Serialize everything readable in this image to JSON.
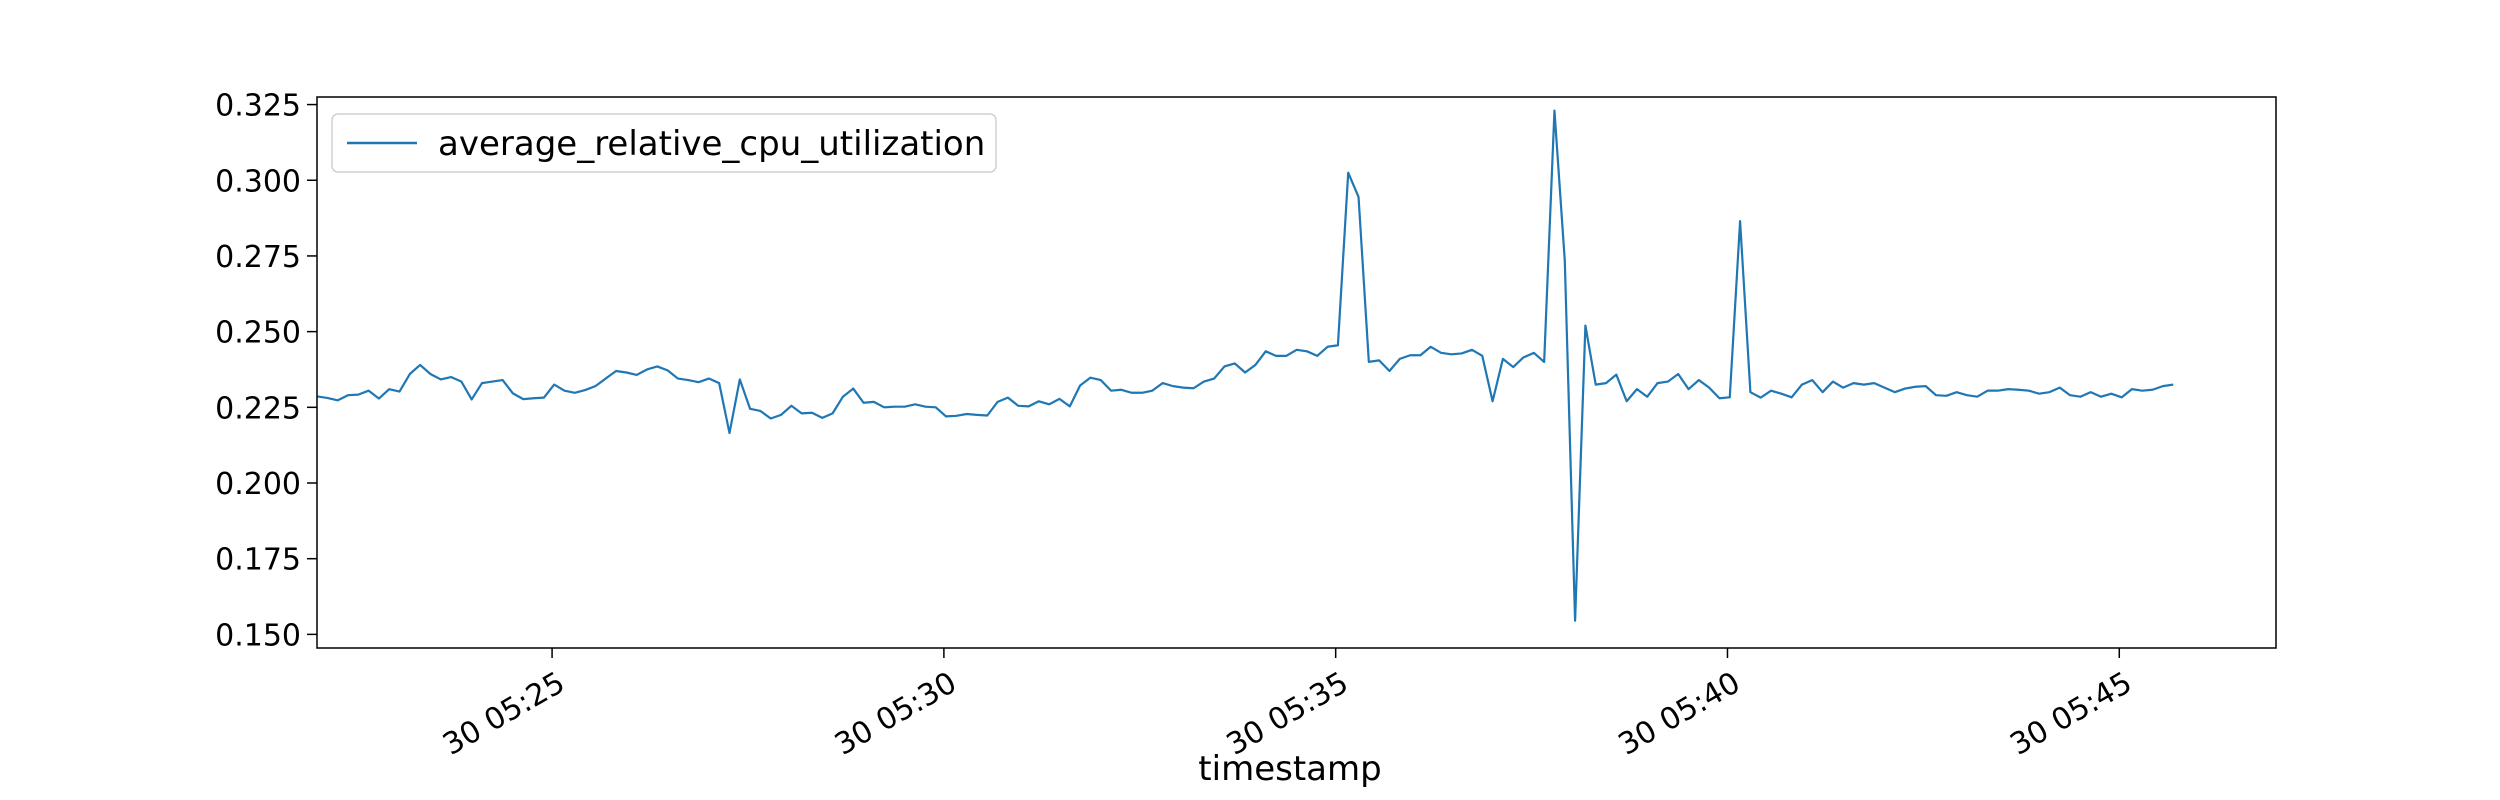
{
  "chart_data": {
    "type": "line",
    "title": "",
    "xlabel": "timestamp",
    "ylabel": "",
    "legend": {
      "placement": "top-left"
    },
    "grid": false,
    "series_color": "#1f77b4",
    "x_unit": "minutes",
    "xlim": [
      22.0,
      47.0
    ],
    "ylim": [
      0.1455,
      0.3275
    ],
    "x_ticks": [
      {
        "value": 25,
        "label": "30 05:25"
      },
      {
        "value": 30,
        "label": "30 05:30"
      },
      {
        "value": 35,
        "label": "30 05:35"
      },
      {
        "value": 40,
        "label": "30 05:40"
      },
      {
        "value": 45,
        "label": "30 05:45"
      }
    ],
    "y_ticks": [
      {
        "value": 0.15,
        "label": "0.150"
      },
      {
        "value": 0.175,
        "label": "0.175"
      },
      {
        "value": 0.2,
        "label": "0.200"
      },
      {
        "value": 0.225,
        "label": "0.225"
      },
      {
        "value": 0.25,
        "label": "0.250"
      },
      {
        "value": 0.275,
        "label": "0.275"
      },
      {
        "value": 0.3,
        "label": "0.300"
      },
      {
        "value": 0.325,
        "label": "0.325"
      }
    ],
    "series": [
      {
        "name": "average_relative_cpu_utilization",
        "x_start": 22.0,
        "x_step": 0.1316,
        "values": [
          0.2286,
          0.2281,
          0.2273,
          0.229,
          0.2292,
          0.2305,
          0.2279,
          0.231,
          0.2302,
          0.236,
          0.239,
          0.236,
          0.2342,
          0.235,
          0.2335,
          0.2276,
          0.233,
          0.2335,
          0.234,
          0.2296,
          0.2277,
          0.228,
          0.2282,
          0.2325,
          0.2305,
          0.2298,
          0.2307,
          0.232,
          0.2345,
          0.237,
          0.2365,
          0.2357,
          0.2375,
          0.2385,
          0.2372,
          0.2345,
          0.234,
          0.2333,
          0.2345,
          0.233,
          0.2165,
          0.2342,
          0.2245,
          0.2238,
          0.2213,
          0.2225,
          0.2255,
          0.223,
          0.2232,
          0.2215,
          0.223,
          0.2285,
          0.2312,
          0.2265,
          0.2268,
          0.225,
          0.2252,
          0.2252,
          0.226,
          0.2252,
          0.225,
          0.222,
          0.2222,
          0.2228,
          0.2225,
          0.2223,
          0.2268,
          0.2282,
          0.2255,
          0.2253,
          0.227,
          0.226,
          0.2278,
          0.2253,
          0.2322,
          0.2348,
          0.234,
          0.2305,
          0.2308,
          0.2298,
          0.2298,
          0.2305,
          0.233,
          0.232,
          0.2315,
          0.2313,
          0.2335,
          0.2345,
          0.2385,
          0.2395,
          0.2365,
          0.239,
          0.2435,
          0.242,
          0.242,
          0.244,
          0.2435,
          0.242,
          0.245,
          0.2455,
          0.3025,
          0.2945,
          0.24,
          0.2405,
          0.237,
          0.241,
          0.2422,
          0.2422,
          0.245,
          0.243,
          0.2425,
          0.2428,
          0.244,
          0.242,
          0.227,
          0.241,
          0.2383,
          0.2415,
          0.243,
          0.24,
          0.323,
          0.2735,
          0.1545,
          0.252,
          0.2325,
          0.233,
          0.2358,
          0.227,
          0.231,
          0.2285,
          0.233,
          0.2335,
          0.236,
          0.231,
          0.234,
          0.2315,
          0.228,
          0.2283,
          0.2865,
          0.23,
          0.2282,
          0.2305,
          0.2295,
          0.2283,
          0.2325,
          0.234,
          0.23,
          0.2335,
          0.2315,
          0.233,
          0.2325,
          0.233,
          0.2315,
          0.23,
          0.2312,
          0.2318,
          0.232,
          0.229,
          0.2288,
          0.23,
          0.229,
          0.2285,
          0.2305,
          0.2305,
          0.231,
          0.2308,
          0.2305,
          0.2295,
          0.23,
          0.2315,
          0.229,
          0.2285,
          0.23,
          0.2285,
          0.2295,
          0.2283,
          0.231,
          0.2305,
          0.2308,
          0.232,
          0.2325
        ]
      }
    ]
  }
}
